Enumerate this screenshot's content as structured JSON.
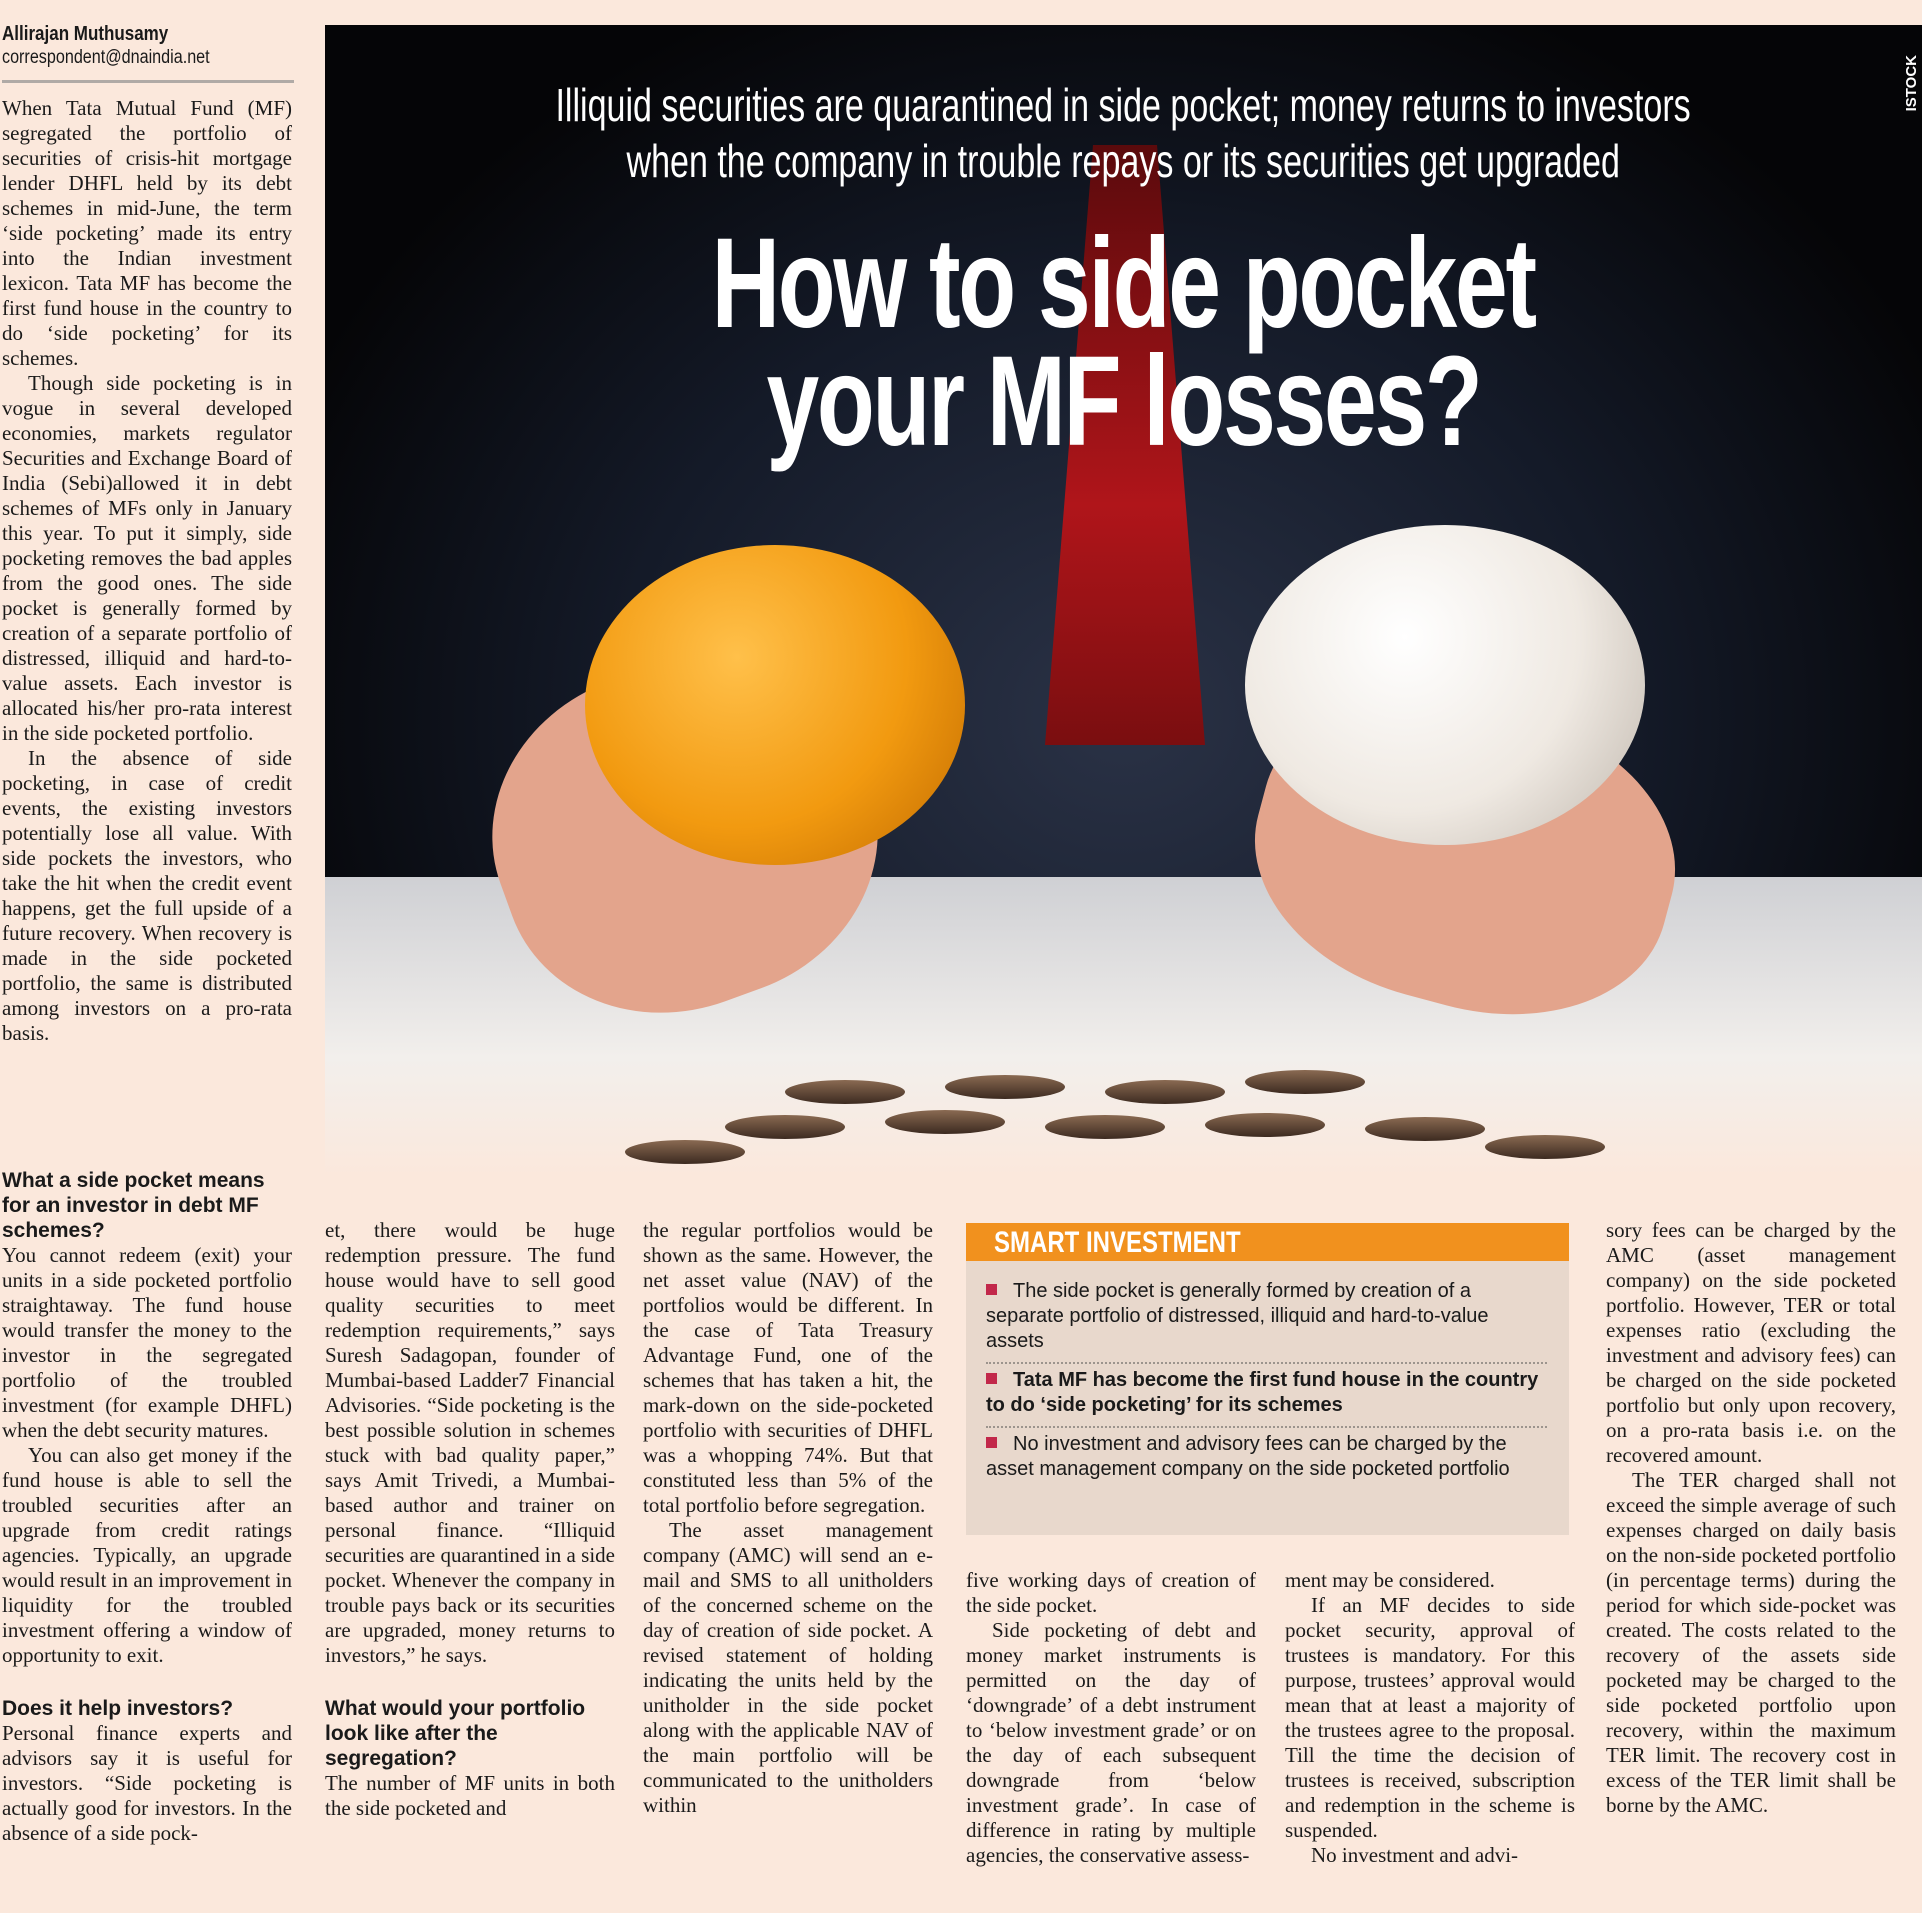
{
  "byline": {
    "author": "Allirajan Muthusamy",
    "email": "correspondent@dnaindia.net"
  },
  "photo": {
    "subhead_line1": "Illiquid securities are quarantined in side pocket; money returns to investors",
    "subhead_line2": "when the company in trouble repays or its securities get upgraded",
    "headline_line1": "How to side pocket",
    "headline_line2": "your MF losses?",
    "credit": "ISTOCK"
  },
  "col1_top": [
    "When Tata Mutual Fund (MF) segregated the portfolio of securities of crisis-hit mortgage lender DHFL held by its debt schemes in mid-June, the term ‘side pocketing’ made its entry into the Indian investment lexicon. Tata MF has become the first fund house in the country to do ‘side pocketing’ for its schemes.",
    "Though side pocketing is in vogue in several developed economies, markets regulator Securities and Exchange Board of India (Sebi)allowed it in debt schemes of MFs only in January this year. To put it simply, side pocketing removes the bad apples from the good ones. The side pocket is generally formed by creation of a separate portfolio of distressed, illiquid and hard-to-value assets. Each investor is allocated his/her pro-rata interest in the side pocketed portfolio.",
    "In the absence of side pocketing, in case of credit events, the existing investors potentially lose all value. With side pockets the investors, who take the hit when the credit event happens, get the full upside of a future recovery. When recovery is made in the side pocketed portfolio, the same is distributed among investors on a pro-rata basis."
  ],
  "col1_bottom": {
    "heading1": "What a side pocket means for an investor in debt MF schemes?",
    "p1": "You cannot redeem (exit) your units in a side pocketed portfolio straightaway. The fund house would transfer the money to the investor in the segregated portfolio of the troubled investment (for example DHFL) when the debt security matures.",
    "p2": "You can also get money if the fund house is able to sell the troubled securities after an upgrade from credit ratings agencies. Typically, an upgrade would result in an improvement in liquidity for the troubled investment offering a window of opportunity to exit.",
    "heading2": "Does it help investors?",
    "p3": "Personal finance experts and advisors say it is useful for investors. “Side pocketing is actually good for investors. In the absence of a side pock-"
  },
  "col2": {
    "p1": "et, there would be huge redemption pressure. The fund house would have to sell good quality securities to meet redemption requirements,” says Suresh Sadagopan, founder of Mumbai-based Ladder7 Financial Advisories. “Side pocketing is the best possible solution in schemes stuck with bad quality paper,” says Amit Trivedi, a Mumbai-based author and trainer on personal finance. “Illiquid securities are quarantined in a side pocket. Whenever the company in trouble pays back or its securities are upgraded, money returns to investors,” he says.",
    "heading": "What would your portfolio look like after the segregation?",
    "p2": "The number of MF units in both the side pocketed and"
  },
  "col3": {
    "p1": "the regular portfolios would be shown as the same. However, the net asset value (NAV) of the portfolios would be different. In the case of Tata Treasury Advantage Fund, one of the schemes that has taken a hit, the mark-down on the side-pocketed portfolio with securities of DHFL was a whopping 74%. But that constituted less than 5% of the total portfolio before segregation.",
    "p2": "The asset management company (AMC) will send an e-mail and SMS to all unitholders of the concerned scheme on the day of creation of side pocket. A revised statement of holding indicating the units held by the unitholder in the side pocket along with the applicable NAV of the main portfolio will be communicated to the unitholders within"
  },
  "col4": {
    "p1": "five working days of creation of the side pocket.",
    "p2": "Side pocketing of debt and money market instruments is permitted on the day of ‘downgrade’ of a debt instrument to ‘below investment grade’ or on the day of each subsequent downgrade from ‘below investment grade’. In case of difference in rating by multiple agencies, the conservative assess-"
  },
  "col5": {
    "p1": "ment may be considered.",
    "p2": "If an MF decides to side pocket security, approval of trustees is mandatory. For this purpose, trustees’ approval would mean that at least a majority of the trustees agree to the proposal. Till the time the decision of trustees is received, subscription and redemption in the scheme is suspended.",
    "p3": "No investment and advi-"
  },
  "col6": {
    "p1": "sory fees can be charged by the AMC (asset management company) on the side pocketed portfolio. However, TER or total expenses ratio (excluding the investment and advisory fees) can be charged on the side pocketed portfolio but only upon recovery, on a pro-rata basis i.e. on the recovered amount.",
    "p2": "The TER charged shall not exceed the simple average of such expenses charged on daily basis on the non-side pocketed portfolio (in percentage terms) during the period for which side-pocket was created. The costs related to the recovery of the assets side pocketed may be charged to the side pocketed portfolio upon recovery, within the maximum TER limit. The recovery cost in excess of the TER limit shall be borne by the AMC."
  },
  "box": {
    "title": "SMART INVESTMENT",
    "items": [
      "The side pocket is generally formed by creation of a separate portfolio of distressed, illiquid and hard-to-value assets",
      "Tata MF has become the first fund house in the country to do ‘side pocketing’ for its schemes",
      "No investment and advisory fees can be charged by the asset management company on the side pocketed portfolio"
    ],
    "colors": {
      "header": "#f1911e",
      "background": "#e8d8cc",
      "bullet": "#c2284a"
    }
  }
}
